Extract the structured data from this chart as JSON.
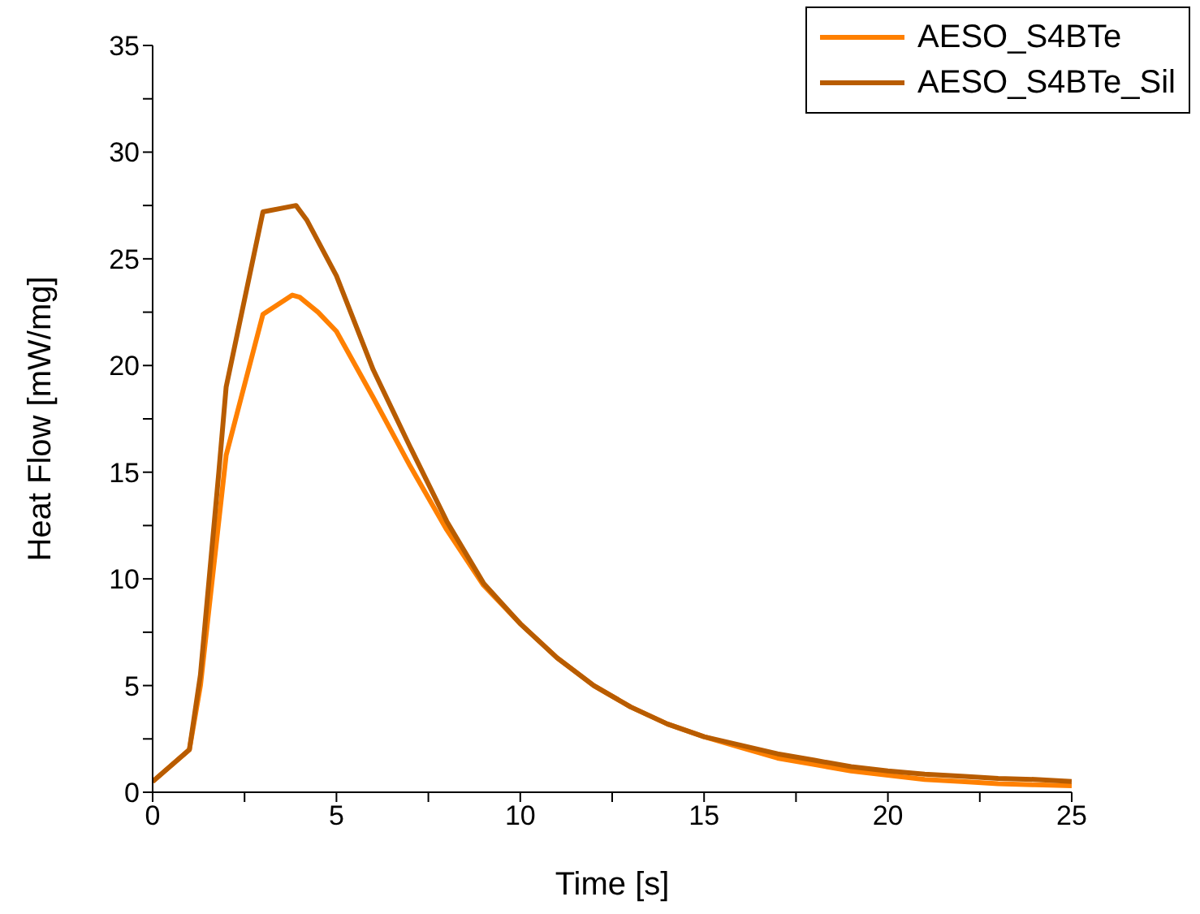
{
  "chart_data": {
    "type": "line",
    "xlabel": "Time [s]",
    "ylabel": "Heat Flow [mW/mg]",
    "xlim": [
      0,
      25
    ],
    "ylim": [
      0,
      35
    ],
    "xticks": [
      0,
      {
        "value": 2.5,
        "label": null
      },
      5,
      {
        "value": 7.5,
        "label": null
      },
      10,
      {
        "value": 12.5,
        "label": null
      },
      15,
      {
        "value": 17.5,
        "label": null
      },
      20,
      {
        "value": 22.5,
        "label": null
      },
      25
    ],
    "yticks": [
      0,
      {
        "value": 2.5,
        "label": null
      },
      5,
      {
        "value": 7.5,
        "label": null
      },
      10,
      {
        "value": 12.5,
        "label": null
      },
      15,
      {
        "value": 17.5,
        "label": null
      },
      20,
      {
        "value": 22.5,
        "label": null
      },
      25,
      {
        "value": 27.5,
        "label": null
      },
      30,
      {
        "value": 32.5,
        "label": null
      },
      35
    ],
    "grid": false,
    "legend": "top right",
    "series": [
      {
        "name": "AESO_S4BTe",
        "color": "#ff8000",
        "x": [
          0,
          1,
          1.3,
          2,
          3,
          3.8,
          4,
          4.5,
          5,
          6,
          7,
          8,
          9,
          10,
          11,
          12,
          13,
          14,
          15,
          16,
          17,
          18,
          19,
          20,
          21,
          22,
          23,
          24,
          25
        ],
        "values": [
          0.5,
          2,
          5,
          15.8,
          22.4,
          23.3,
          23.2,
          22.5,
          21.6,
          18.5,
          15.3,
          12.3,
          9.7,
          7.9,
          6.3,
          5.0,
          4.0,
          3.2,
          2.6,
          2.1,
          1.6,
          1.3,
          1.0,
          0.8,
          0.6,
          0.5,
          0.4,
          0.35,
          0.3
        ]
      },
      {
        "name": "AESO_S4BTe_Sil",
        "color": "#b85c00",
        "x": [
          0,
          1,
          1.3,
          1.8,
          2,
          3,
          3.9,
          4.2,
          5,
          6,
          7,
          8,
          9,
          10,
          11,
          12,
          13,
          14,
          15,
          16,
          17,
          18,
          19,
          20,
          21,
          22,
          23,
          24,
          25
        ],
        "values": [
          0.5,
          2,
          5.5,
          15,
          19,
          27.2,
          27.5,
          26.8,
          24.2,
          19.8,
          16.2,
          12.7,
          9.8,
          7.9,
          6.3,
          5.0,
          4.0,
          3.2,
          2.6,
          2.2,
          1.8,
          1.5,
          1.2,
          1.0,
          0.85,
          0.75,
          0.65,
          0.6,
          0.5
        ]
      }
    ]
  }
}
